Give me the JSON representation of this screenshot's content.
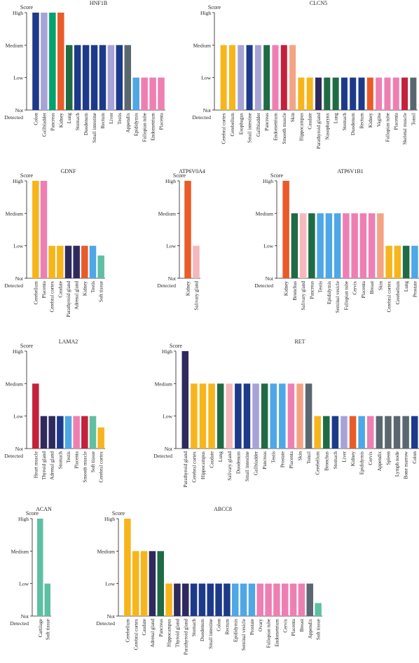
{
  "colors": {
    "navy": "#1d3a8a",
    "lavender": "#a7a3d6",
    "green": "#00a36f",
    "orange": "#ea5b2a",
    "darkgreen": "#1f6b45",
    "gray": "#5b6770",
    "skyblue": "#4ea7e6",
    "pink": "#ee7fb3",
    "yellow": "#f7b51c",
    "salmon": "#f4a485",
    "purple": "#2e2a5e",
    "lightpink": "#f6b8bd",
    "red": "#c4213a",
    "mint": "#5fbfa3",
    "axis": "#231f20"
  },
  "chart_data": [
    {
      "type": "bar",
      "title": "HNF1B",
      "ylabel": "Score",
      "yticks": [
        "Not Detected",
        "Low",
        "Medium",
        "High"
      ],
      "ylim": [
        0,
        3
      ],
      "categories": [
        "Colon",
        "Gallbladder",
        "Pancreas",
        "Kidney",
        "Lung",
        "Stomach",
        "Duodenum",
        "Small intestine",
        "Rectum",
        "Liver",
        "Testis",
        "Appendix",
        "Epididymis",
        "Fallopian tube",
        "Endometrium",
        "Placenta"
      ],
      "values": [
        3,
        3,
        3,
        3,
        2,
        2,
        2,
        2,
        2,
        2,
        2,
        2,
        1,
        1,
        1,
        1
      ],
      "colors": [
        "navy",
        "lavender",
        "green",
        "orange",
        "darkgreen",
        "navy",
        "navy",
        "navy",
        "navy",
        "lavender",
        "navy",
        "gray",
        "skyblue",
        "pink",
        "pink",
        "pink"
      ]
    },
    {
      "type": "bar",
      "title": "CLCN5",
      "ylabel": "Score",
      "yticks": [
        "Not Detected",
        "Low",
        "Medium",
        "High"
      ],
      "ylim": [
        0,
        3
      ],
      "categories": [
        "Cerebral cortex",
        "Cerebellum",
        "Esophagus",
        "Small intestine",
        "Gallbladder",
        "Pancreas",
        "Endometrium",
        "Smooth muscle",
        "Skin",
        "Hippocampus",
        "Caudate",
        "Parathyroid gland",
        "Nasopharynx",
        "Lung",
        "Stomach",
        "Duodenum",
        "Rectum",
        "Kidney",
        "Vagina",
        "Fallopian tube",
        "Placenta",
        "Skeletal muscle",
        "Tonsil"
      ],
      "values": [
        2,
        2,
        2,
        2,
        2,
        2,
        2,
        2,
        2,
        1,
        1,
        1,
        1,
        1,
        1,
        1,
        1,
        1,
        1,
        1,
        1,
        1,
        1
      ],
      "colors": [
        "yellow",
        "yellow",
        "lavender",
        "navy",
        "lavender",
        "darkgreen",
        "pink",
        "red",
        "salmon",
        "yellow",
        "yellow",
        "purple",
        "darkgreen",
        "darkgreen",
        "navy",
        "navy",
        "navy",
        "orange",
        "pink",
        "pink",
        "pink",
        "red",
        "gray"
      ]
    },
    {
      "type": "bar",
      "title": "GDNF",
      "ylabel": "Score",
      "yticks": [
        "Not Detected",
        "Low",
        "Medium",
        "High"
      ],
      "ylim": [
        0,
        3
      ],
      "categories": [
        "Cerebellum",
        "Placenta",
        "Cerebral cortex",
        "Caudate",
        "Parathyroid gland",
        "Adrenal gland",
        "Kidney",
        "Testis",
        "Soft tissue"
      ],
      "values": [
        3,
        3,
        1,
        1,
        1,
        1,
        1,
        1,
        0.7
      ],
      "colors": [
        "yellow",
        "pink",
        "yellow",
        "yellow",
        "purple",
        "purple",
        "orange",
        "skyblue",
        "mint"
      ]
    },
    {
      "type": "bar",
      "title": "ATP6V0A4",
      "ylabel": "Score",
      "yticks": [
        "Not Detected",
        "Low",
        "Medium",
        "High"
      ],
      "ylim": [
        0,
        3
      ],
      "categories": [
        "Kidney",
        "Salivary gland"
      ],
      "values": [
        3,
        1
      ],
      "colors": [
        "orange",
        "lightpink"
      ]
    },
    {
      "type": "bar",
      "title": "ATP6V1B1",
      "ylabel": "Score",
      "yticks": [
        "Not Detected",
        "Low",
        "Medium",
        "High"
      ],
      "ylim": [
        0,
        3
      ],
      "categories": [
        "Kidney",
        "Bronchus",
        "Salivary gland",
        "Pancreas",
        "Testis",
        "Epididymis",
        "Seminal vesicle",
        "Fallopian tube",
        "Cervix",
        "Placenta",
        "Breast",
        "Skin",
        "Cerebral cortex",
        "Cerebellum",
        "Lung",
        "Prostate"
      ],
      "values": [
        3,
        2,
        2,
        2,
        2,
        2,
        2,
        2,
        2,
        2,
        2,
        2,
        1,
        1,
        1,
        1
      ],
      "colors": [
        "orange",
        "darkgreen",
        "lightpink",
        "darkgreen",
        "skyblue",
        "skyblue",
        "skyblue",
        "pink",
        "pink",
        "pink",
        "pink",
        "salmon",
        "yellow",
        "yellow",
        "darkgreen",
        "skyblue"
      ]
    },
    {
      "type": "bar",
      "title": "LAMA2",
      "ylabel": "Score",
      "yticks": [
        "Not Detected",
        "Low",
        "Medium",
        "High"
      ],
      "ylim": [
        0,
        3
      ],
      "categories": [
        "Heart muscle",
        "Thyroid gland",
        "Adrenal gland",
        "Stomach",
        "Testis",
        "Placenta",
        "Smooth muscle",
        "Soft tissue",
        "Cerebral cortex"
      ],
      "values": [
        2,
        1,
        1,
        1,
        1,
        1,
        1,
        1,
        0.65
      ],
      "colors": [
        "red",
        "purple",
        "purple",
        "navy",
        "skyblue",
        "pink",
        "red",
        "mint",
        "yellow"
      ]
    },
    {
      "type": "bar",
      "title": "RET",
      "ylabel": "Score",
      "yticks": [
        "Not Detected",
        "Low",
        "Medium",
        "High"
      ],
      "ylim": [
        0,
        3
      ],
      "categories": [
        "Parathyroid gland",
        "Cerebral cortex",
        "Hippocampus",
        "Caudate",
        "Lung",
        "Salivary gland",
        "Duodenum",
        "Small intestine",
        "Gallbladder",
        "Pancreas",
        "Testis",
        "Prostate",
        "Placenta",
        "Skin",
        "Tonsil",
        "Cerebellum",
        "Bronchus",
        "Stomach",
        "Liver",
        "Kidney",
        "Epididymis",
        "Cervix",
        "Appendix",
        "Spleen",
        "Lymph node",
        "Bone marrow",
        "Colon"
      ],
      "values": [
        3,
        2,
        2,
        2,
        2,
        2,
        2,
        2,
        2,
        2,
        2,
        2,
        2,
        2,
        2,
        1,
        1,
        1,
        1,
        1,
        1,
        1,
        1,
        1,
        1,
        1,
        1
      ],
      "colors": [
        "purple",
        "yellow",
        "yellow",
        "yellow",
        "darkgreen",
        "lightpink",
        "navy",
        "navy",
        "lavender",
        "darkgreen",
        "skyblue",
        "skyblue",
        "pink",
        "salmon",
        "gray",
        "yellow",
        "darkgreen",
        "navy",
        "lavender",
        "orange",
        "skyblue",
        "pink",
        "gray",
        "gray",
        "gray",
        "gray",
        "navy"
      ]
    },
    {
      "type": "bar",
      "title": "ACAN",
      "ylabel": "Score",
      "yticks": [
        "Not Detected",
        "Low",
        "Medium",
        "High"
      ],
      "ylim": [
        0,
        3
      ],
      "categories": [
        "Cartilage",
        "Soft tissue"
      ],
      "values": [
        3,
        1
      ],
      "colors": [
        "mint",
        "mint"
      ]
    },
    {
      "type": "bar",
      "title": "ABCC8",
      "ylabel": "Score",
      "yticks": [
        "Not Detected",
        "Low",
        "Medium",
        "High"
      ],
      "ylim": [
        0,
        3
      ],
      "categories": [
        "Cerebellum",
        "Cerebral cortex",
        "Caudate",
        "Adrenal gland",
        "Pancreas",
        "Hippocampus",
        "Thyroid gland",
        "Parathyroid gland",
        "Stomach",
        "Duodenum",
        "Small intestine",
        "Colon",
        "Rectum",
        "Epididymis",
        "Seminal vesicle",
        "Prostate",
        "Ovary",
        "Fallopian tube",
        "Endometrium",
        "Cervix",
        "Placenta",
        "Breast",
        "Appendix",
        "Soft tissue"
      ],
      "values": [
        3,
        2,
        2,
        2,
        2,
        1,
        1,
        1,
        1,
        1,
        1,
        1,
        1,
        1,
        1,
        1,
        1,
        1,
        1,
        1,
        1,
        1,
        1,
        0.4
      ],
      "colors": [
        "yellow",
        "yellow",
        "yellow",
        "purple",
        "darkgreen",
        "yellow",
        "purple",
        "purple",
        "navy",
        "navy",
        "navy",
        "navy",
        "navy",
        "skyblue",
        "skyblue",
        "skyblue",
        "pink",
        "pink",
        "pink",
        "pink",
        "pink",
        "pink",
        "gray",
        "mint"
      ]
    }
  ]
}
